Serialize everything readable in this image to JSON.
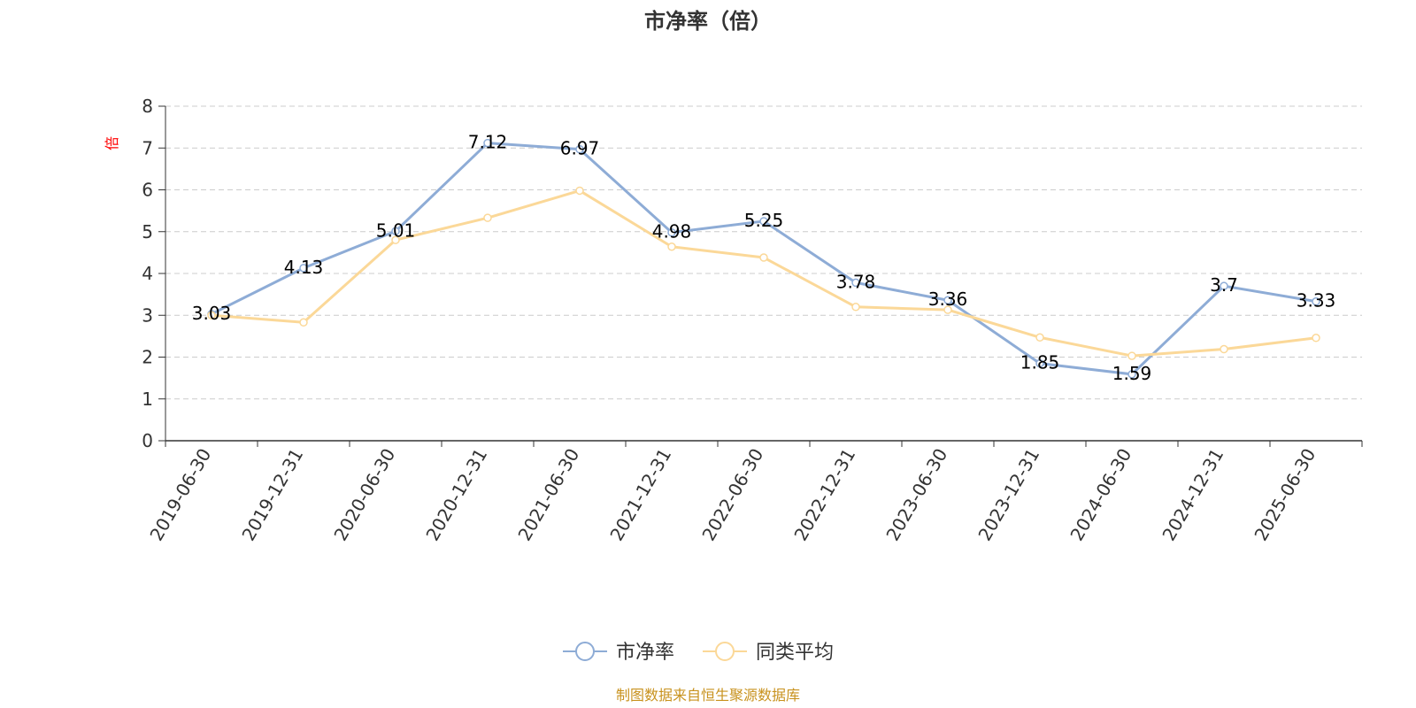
{
  "chart_data": {
    "type": "line",
    "title": "市净率（倍）",
    "ylabel": "倍",
    "xlabel": "",
    "ylim": [
      0,
      8
    ],
    "yticks": [
      0,
      1,
      2,
      3,
      4,
      5,
      6,
      7,
      8
    ],
    "grid": true,
    "legend_position": "bottom",
    "categories": [
      "2019-06-30",
      "2019-12-31",
      "2020-06-30",
      "2020-12-31",
      "2021-06-30",
      "2021-12-31",
      "2022-06-30",
      "2022-12-31",
      "2023-06-30",
      "2023-12-31",
      "2024-06-30",
      "2024-12-31",
      "2025-06-30"
    ],
    "series": [
      {
        "name": "市净率",
        "color": "#8eacd6",
        "values": [
          3.03,
          4.13,
          5.01,
          7.12,
          6.97,
          4.98,
          5.25,
          3.78,
          3.36,
          1.85,
          1.59,
          3.7,
          3.33
        ],
        "labels": [
          "3.03",
          "4.13",
          "5.01",
          "7.12",
          "6.97",
          "4.98",
          "5.25",
          "3.78",
          "3.36",
          "1.85",
          "1.59",
          "3.7",
          "3.33"
        ]
      },
      {
        "name": "同类平均",
        "color": "#fbd898",
        "values": [
          3.0,
          2.83,
          4.8,
          5.33,
          5.98,
          4.64,
          4.38,
          3.2,
          3.13,
          2.47,
          2.03,
          2.19,
          2.46
        ]
      }
    ],
    "source": "制图数据来自恒生聚源数据库",
    "source_color": "#c8921e",
    "unit_color": "#ff0000"
  }
}
